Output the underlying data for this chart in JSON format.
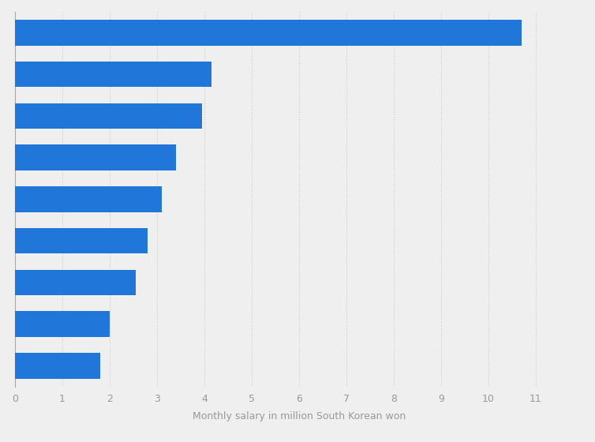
{
  "values": [
    10.7,
    4.15,
    3.95,
    3.4,
    3.1,
    2.8,
    2.55,
    2.0,
    1.8
  ],
  "bar_color": "#2176d9",
  "background_color": "#efefef",
  "plot_background_color": "#efefef",
  "xlabel": "Monthly salary in million South Korean won",
  "xlim": [
    0,
    12
  ],
  "xticks": [
    0,
    1,
    2,
    3,
    4,
    5,
    6,
    7,
    8,
    9,
    10,
    11
  ],
  "bar_height": 0.62
}
